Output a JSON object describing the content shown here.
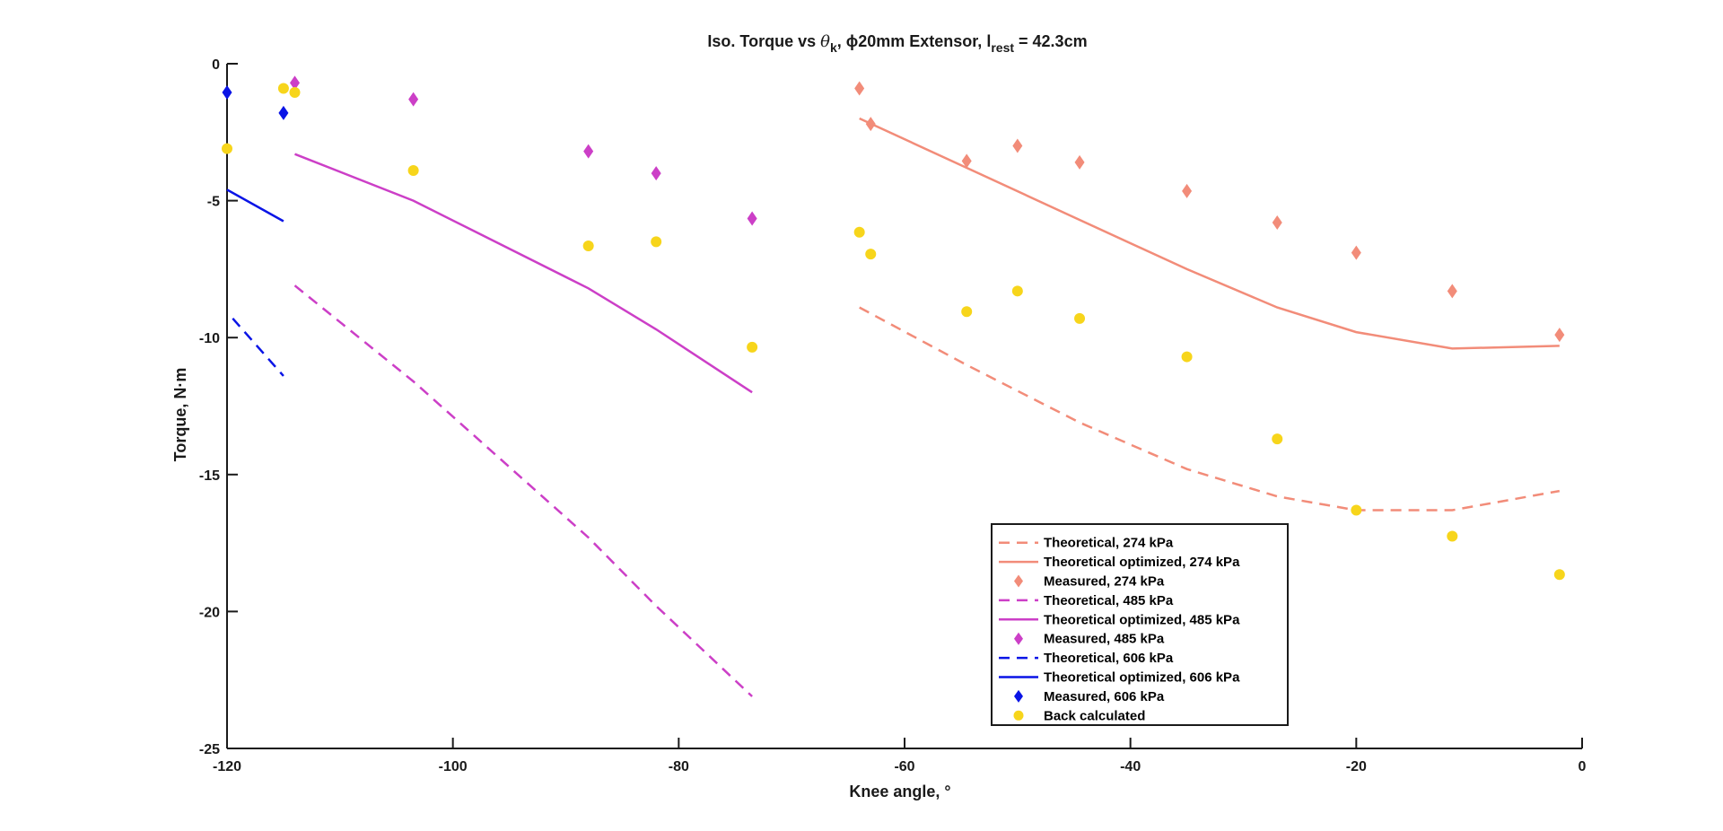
{
  "chart_data": {
    "type": "line",
    "title": {
      "prefix": "Iso. Torque vs ",
      "theta": "θ",
      "theta_sub": "k",
      "phi_part": ", ϕ20mm Extensor, ",
      "l_symbol": "l",
      "l_sub": "rest",
      "suffix": " = 42.3cm"
    },
    "xlabel": "Knee angle, °",
    "ylabel": "Torque, N·m",
    "xlim": [
      -120,
      0
    ],
    "ylim": [
      -25,
      0
    ],
    "xticks": [
      -120,
      -100,
      -80,
      -60,
      -40,
      -20,
      0
    ],
    "yticks": [
      -25,
      -20,
      -15,
      -10,
      -5,
      0
    ],
    "xtick_labels": [
      "-120",
      "-100",
      "-80",
      "-60",
      "-40",
      "-20",
      "0"
    ],
    "ytick_labels": [
      "-25",
      "-20",
      "-15",
      "-10",
      "-5",
      "0"
    ],
    "grid": false,
    "legend_position": "bottom-right",
    "colors": {
      "p274": "#F28C79",
      "p485": "#CC3FC7",
      "p606": "#0A14E6",
      "back": "#F7D51B",
      "axis": "#1a1a1a"
    },
    "series": [
      {
        "name": "Theoretical, 274 kPa",
        "color_key": "p274",
        "style": "dashed",
        "x": [
          -64,
          -54.5,
          -44.5,
          -35,
          -27,
          -20,
          -11.5,
          -2
        ],
        "y": [
          -8.9,
          -11,
          -13.1,
          -14.8,
          -15.8,
          -16.3,
          -16.3,
          -15.6
        ]
      },
      {
        "name": "Theoretical optimized, 274 kPa",
        "color_key": "p274",
        "style": "solid",
        "x": [
          -64,
          -54.5,
          -44.5,
          -35,
          -27,
          -20,
          -11.5,
          -2
        ],
        "y": [
          -2,
          -3.8,
          -5.7,
          -7.5,
          -8.9,
          -9.8,
          -10.4,
          -10.3
        ]
      },
      {
        "name": "Measured, 274 kPa",
        "color_key": "p274",
        "style": "diamond",
        "x": [
          -64,
          -63,
          -54.5,
          -50,
          -44.5,
          -35,
          -27,
          -20,
          -11.5,
          -2
        ],
        "y": [
          -0.9,
          -2.2,
          -3.55,
          -3,
          -3.6,
          -4.65,
          -5.8,
          -6.9,
          -8.3,
          -9.9
        ]
      },
      {
        "name": "Theoretical, 485 kPa",
        "color_key": "p485",
        "style": "dashed",
        "x": [
          -114,
          -103.5,
          -88,
          -82,
          -73.5
        ],
        "y": [
          -8.1,
          -11.6,
          -17.3,
          -19.8,
          -23.1
        ]
      },
      {
        "name": "Theoretical optimized, 485 kPa",
        "color_key": "p485",
        "style": "solid",
        "x": [
          -114,
          -103.5,
          -88,
          -82,
          -73.5
        ],
        "y": [
          -3.3,
          -5.0,
          -8.2,
          -9.7,
          -12
        ]
      },
      {
        "name": "Measured, 485 kPa",
        "color_key": "p485",
        "style": "diamond",
        "x": [
          -114,
          -103.5,
          -88,
          -82,
          -73.5
        ],
        "y": [
          -0.7,
          -1.3,
          -3.2,
          -4,
          -5.65
        ]
      },
      {
        "name": "Theoretical, 606 kPa",
        "color_key": "p606",
        "style": "dashed",
        "x": [
          -119.5,
          -115
        ],
        "y": [
          -9.3,
          -11.4
        ]
      },
      {
        "name": "Theoretical optimized, 606 kPa",
        "color_key": "p606",
        "style": "solid",
        "x": [
          -120,
          -115
        ],
        "y": [
          -4.6,
          -5.75
        ]
      },
      {
        "name": "Measured, 606 kPa",
        "color_key": "p606",
        "style": "diamond",
        "x": [
          -120,
          -115
        ],
        "y": [
          -1.05,
          -1.8
        ]
      },
      {
        "name": "Back calculated",
        "color_key": "back",
        "style": "circle",
        "x": [
          -120,
          -115,
          -114,
          -103.5,
          -88,
          -82,
          -73.5,
          -64,
          -63,
          -54.5,
          -50,
          -44.5,
          -35,
          -27,
          -20,
          -11.5,
          -2
        ],
        "y": [
          -3.1,
          -0.9,
          -1.05,
          -3.9,
          -6.65,
          -6.5,
          -10.35,
          -6.15,
          -6.95,
          -9.05,
          -8.3,
          -9.3,
          -10.7,
          -13.7,
          -16.3,
          -17.25,
          -18.65
        ]
      }
    ]
  }
}
